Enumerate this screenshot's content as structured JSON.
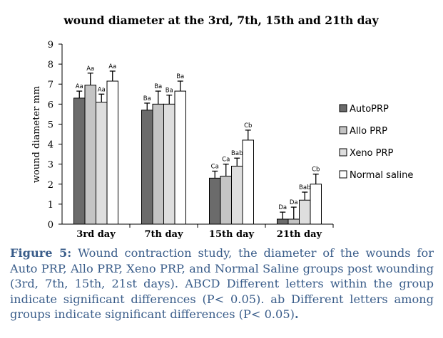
{
  "chart_data": {
    "type": "bar",
    "title": "wound diameter at the 3rd, 7th, 15th and 21th  day",
    "ylabel": "wound diameter mm",
    "xlabel": "",
    "ylim": [
      0,
      9
    ],
    "yticks": [
      "0",
      "1",
      "2",
      "3",
      "4",
      "5",
      "6",
      "7",
      "8",
      "9"
    ],
    "categories": [
      "3rd day",
      "7th day",
      "15th day",
      "21th day"
    ],
    "legend_position": "right",
    "grid": false,
    "series": [
      {
        "name": "AutoPRP",
        "color": "#6b6b6b",
        "values": [
          6.3,
          5.7,
          2.3,
          0.25
        ],
        "errors": [
          0.35,
          0.35,
          0.35,
          0.35
        ],
        "labels": [
          "Aa",
          "Ba",
          "Ca",
          "Da"
        ]
      },
      {
        "name": "Allo PRP",
        "color": "#c4c4c4",
        "values": [
          6.95,
          6.0,
          2.4,
          0.25
        ],
        "errors": [
          0.6,
          0.65,
          0.6,
          0.6
        ],
        "labels": [
          "Aa",
          "Ba",
          "Ca",
          "Da"
        ]
      },
      {
        "name": "Xeno PRP",
        "color": "#dedede",
        "values": [
          6.1,
          6.0,
          2.9,
          1.2
        ],
        "errors": [
          0.4,
          0.45,
          0.4,
          0.4
        ],
        "labels": [
          "Aa",
          "Ba",
          "Bab",
          "Bab"
        ]
      },
      {
        "name": "Normal saline",
        "color": "#ffffff",
        "values": [
          7.15,
          6.65,
          4.2,
          2.0
        ],
        "errors": [
          0.5,
          0.5,
          0.5,
          0.5
        ],
        "labels": [
          "Aa",
          "Ba",
          "Cb",
          "Cb"
        ]
      }
    ]
  },
  "caption": {
    "label": "Figure 5:",
    "text": " Wound contraction study, the diameter of the wounds for Auto PRP, Allo PRP, Xeno PRP, and Normal Saline groups post wounding (3rd, 7th, 15th, 21st days). ABCD Different letters within the group indicate significant differences (P< 0.05). ab Different letters among groups indicate significant differences (P< 0.05)",
    "end": "."
  }
}
